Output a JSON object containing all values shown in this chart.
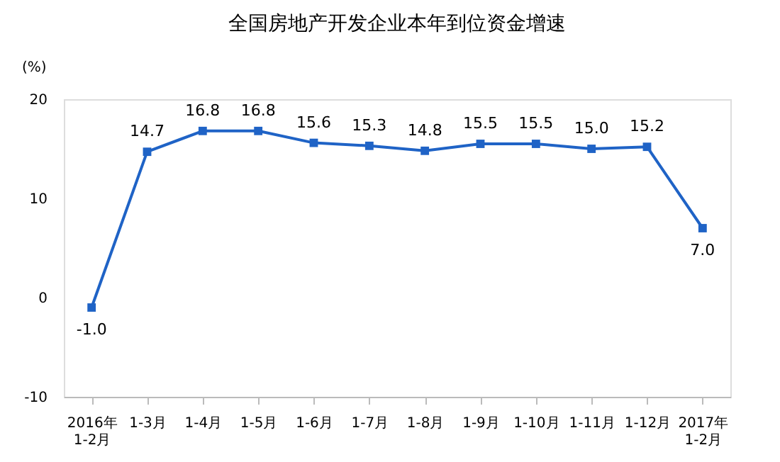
{
  "chart_data": {
    "type": "line",
    "title": "全国房地产开发企业本年到位资金增速",
    "ylabel": "(%)",
    "categories": [
      "2016年\n1-2月",
      "1-3月",
      "1-4月",
      "1-5月",
      "1-6月",
      "1-7月",
      "1-8月",
      "1-9月",
      "1-10月",
      "1-11月",
      "1-12月",
      "2017年\n1-2月"
    ],
    "series": [
      {
        "color": "#1f63c6",
        "values": [
          -1.0,
          14.7,
          16.8,
          16.8,
          15.6,
          15.3,
          14.8,
          15.5,
          15.5,
          15.0,
          15.2,
          7.0
        ],
        "value_labels": [
          "-1.0",
          "14.7",
          "16.8",
          "16.8",
          "15.6",
          "15.3",
          "14.8",
          "15.5",
          "15.5",
          "15.0",
          "15.2",
          "7.0"
        ]
      }
    ],
    "ylim": [
      -10,
      20
    ],
    "yticks": [
      -10,
      0,
      10,
      20
    ],
    "grid": false,
    "marker": "square",
    "line_style": "solid"
  }
}
